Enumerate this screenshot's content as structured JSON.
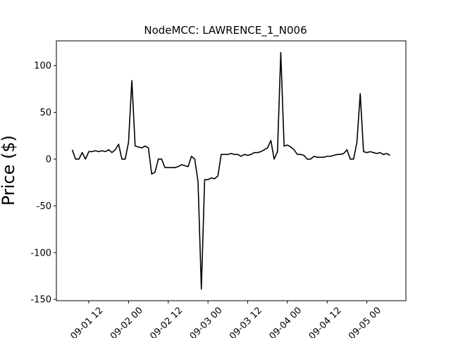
{
  "chart_data": {
    "type": "line",
    "title": "NodeMCC: LAWRENCE_1_N006",
    "y_label": "Price ($)",
    "x": [
      7,
      8,
      9,
      10,
      11,
      12,
      13,
      14,
      15,
      16,
      17,
      18,
      19,
      20,
      21,
      22,
      23,
      24,
      25,
      26,
      27,
      28,
      29,
      30,
      31,
      32,
      33,
      34,
      35,
      36,
      37,
      38,
      39,
      40,
      41,
      42,
      43,
      44,
      45,
      46,
      47,
      48,
      49,
      50,
      51,
      52,
      53,
      54,
      55,
      56,
      57,
      58,
      59,
      60,
      61,
      62,
      63,
      64,
      65,
      66,
      67,
      68,
      69,
      70,
      71,
      72,
      73,
      74,
      75,
      76,
      77,
      78,
      79,
      80,
      81,
      82,
      83,
      84,
      85,
      86,
      87,
      88,
      89,
      90,
      91,
      92,
      93,
      94,
      95,
      96,
      97,
      98,
      99,
      100,
      101,
      102,
      103
    ],
    "series": [
      {
        "name": "LAWRENCE_1_N006",
        "color": "#000000",
        "values": [
          10,
          0,
          0,
          7,
          0,
          8,
          8,
          9,
          8,
          9,
          8,
          10,
          7,
          10,
          16,
          0,
          0,
          18,
          84,
          14,
          13,
          12,
          14,
          12,
          -16,
          -14,
          0,
          0,
          -9,
          -9,
          -9,
          -9,
          -8,
          -6,
          -7,
          -8,
          3,
          0,
          -24,
          -139,
          -22,
          -22,
          -20,
          -21,
          -18,
          5,
          5,
          5,
          6,
          5,
          5,
          3,
          5,
          4,
          5,
          7,
          7,
          8,
          10,
          12,
          20,
          0,
          8,
          114,
          14,
          15,
          13,
          10,
          5,
          5,
          4,
          0,
          0,
          3,
          2,
          2,
          2,
          3,
          3,
          4,
          5,
          5,
          6,
          10,
          0,
          0,
          18,
          70,
          8,
          7,
          8,
          7,
          6,
          7,
          5,
          6,
          4
        ]
      }
    ],
    "xlim": [
      2.2,
      107.8
    ],
    "xticks": [
      {
        "value": 12,
        "label": "09-01 12"
      },
      {
        "value": 24,
        "label": "09-02 00"
      },
      {
        "value": 36,
        "label": "09-02 12"
      },
      {
        "value": 48,
        "label": "09-03 00"
      },
      {
        "value": 60,
        "label": "09-03 12"
      },
      {
        "value": 72,
        "label": "09-04 00"
      },
      {
        "value": 84,
        "label": "09-04 12"
      },
      {
        "value": 96,
        "label": "09-05 00"
      }
    ],
    "ylim": [
      -151.4,
      126.5
    ],
    "yticks": [
      -150,
      -100,
      -50,
      0,
      50,
      100
    ]
  }
}
